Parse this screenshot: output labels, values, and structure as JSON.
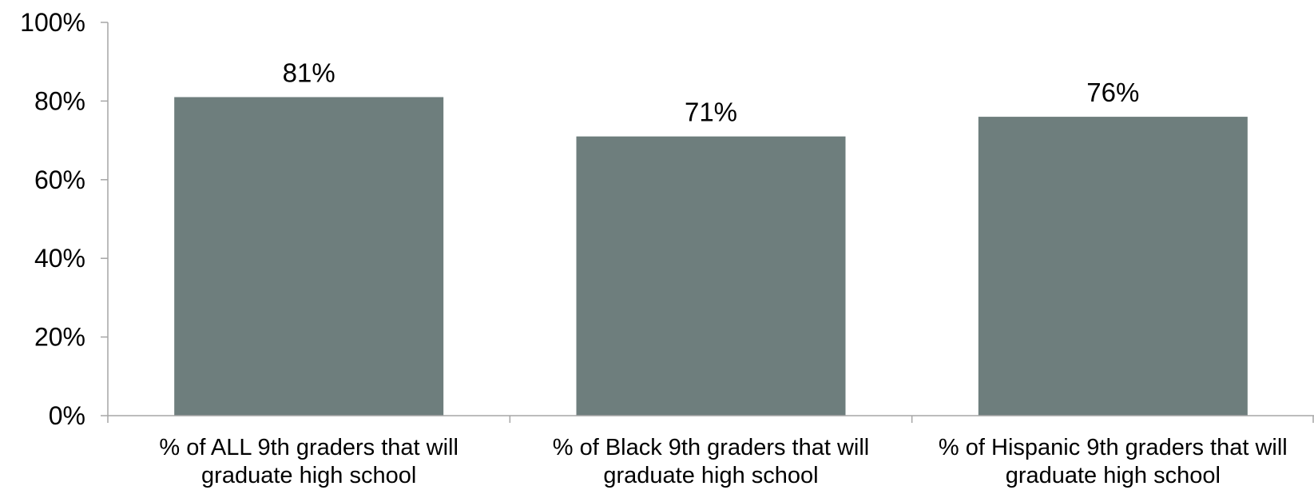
{
  "chart_data": {
    "type": "bar",
    "title": "",
    "xlabel": "",
    "ylabel": "",
    "categories": [
      [
        "% of ALL 9th graders that will",
        "graduate high school"
      ],
      [
        "% of Black 9th graders that will",
        "graduate high school"
      ],
      [
        "% of Hispanic 9th graders that will",
        "graduate high school"
      ]
    ],
    "values": [
      81,
      71,
      76
    ],
    "data_labels": [
      "81%",
      "71%",
      "76%"
    ],
    "ylim": [
      0,
      100
    ],
    "yticks": [
      0,
      20,
      40,
      60,
      80,
      100
    ],
    "ytick_labels": [
      "0%",
      "20%",
      "40%",
      "60%",
      "80%",
      "100%"
    ],
    "grid": false,
    "legend": "none",
    "colors": {
      "bar": "#6e7e7d",
      "axis": "#a6a6a6"
    }
  }
}
